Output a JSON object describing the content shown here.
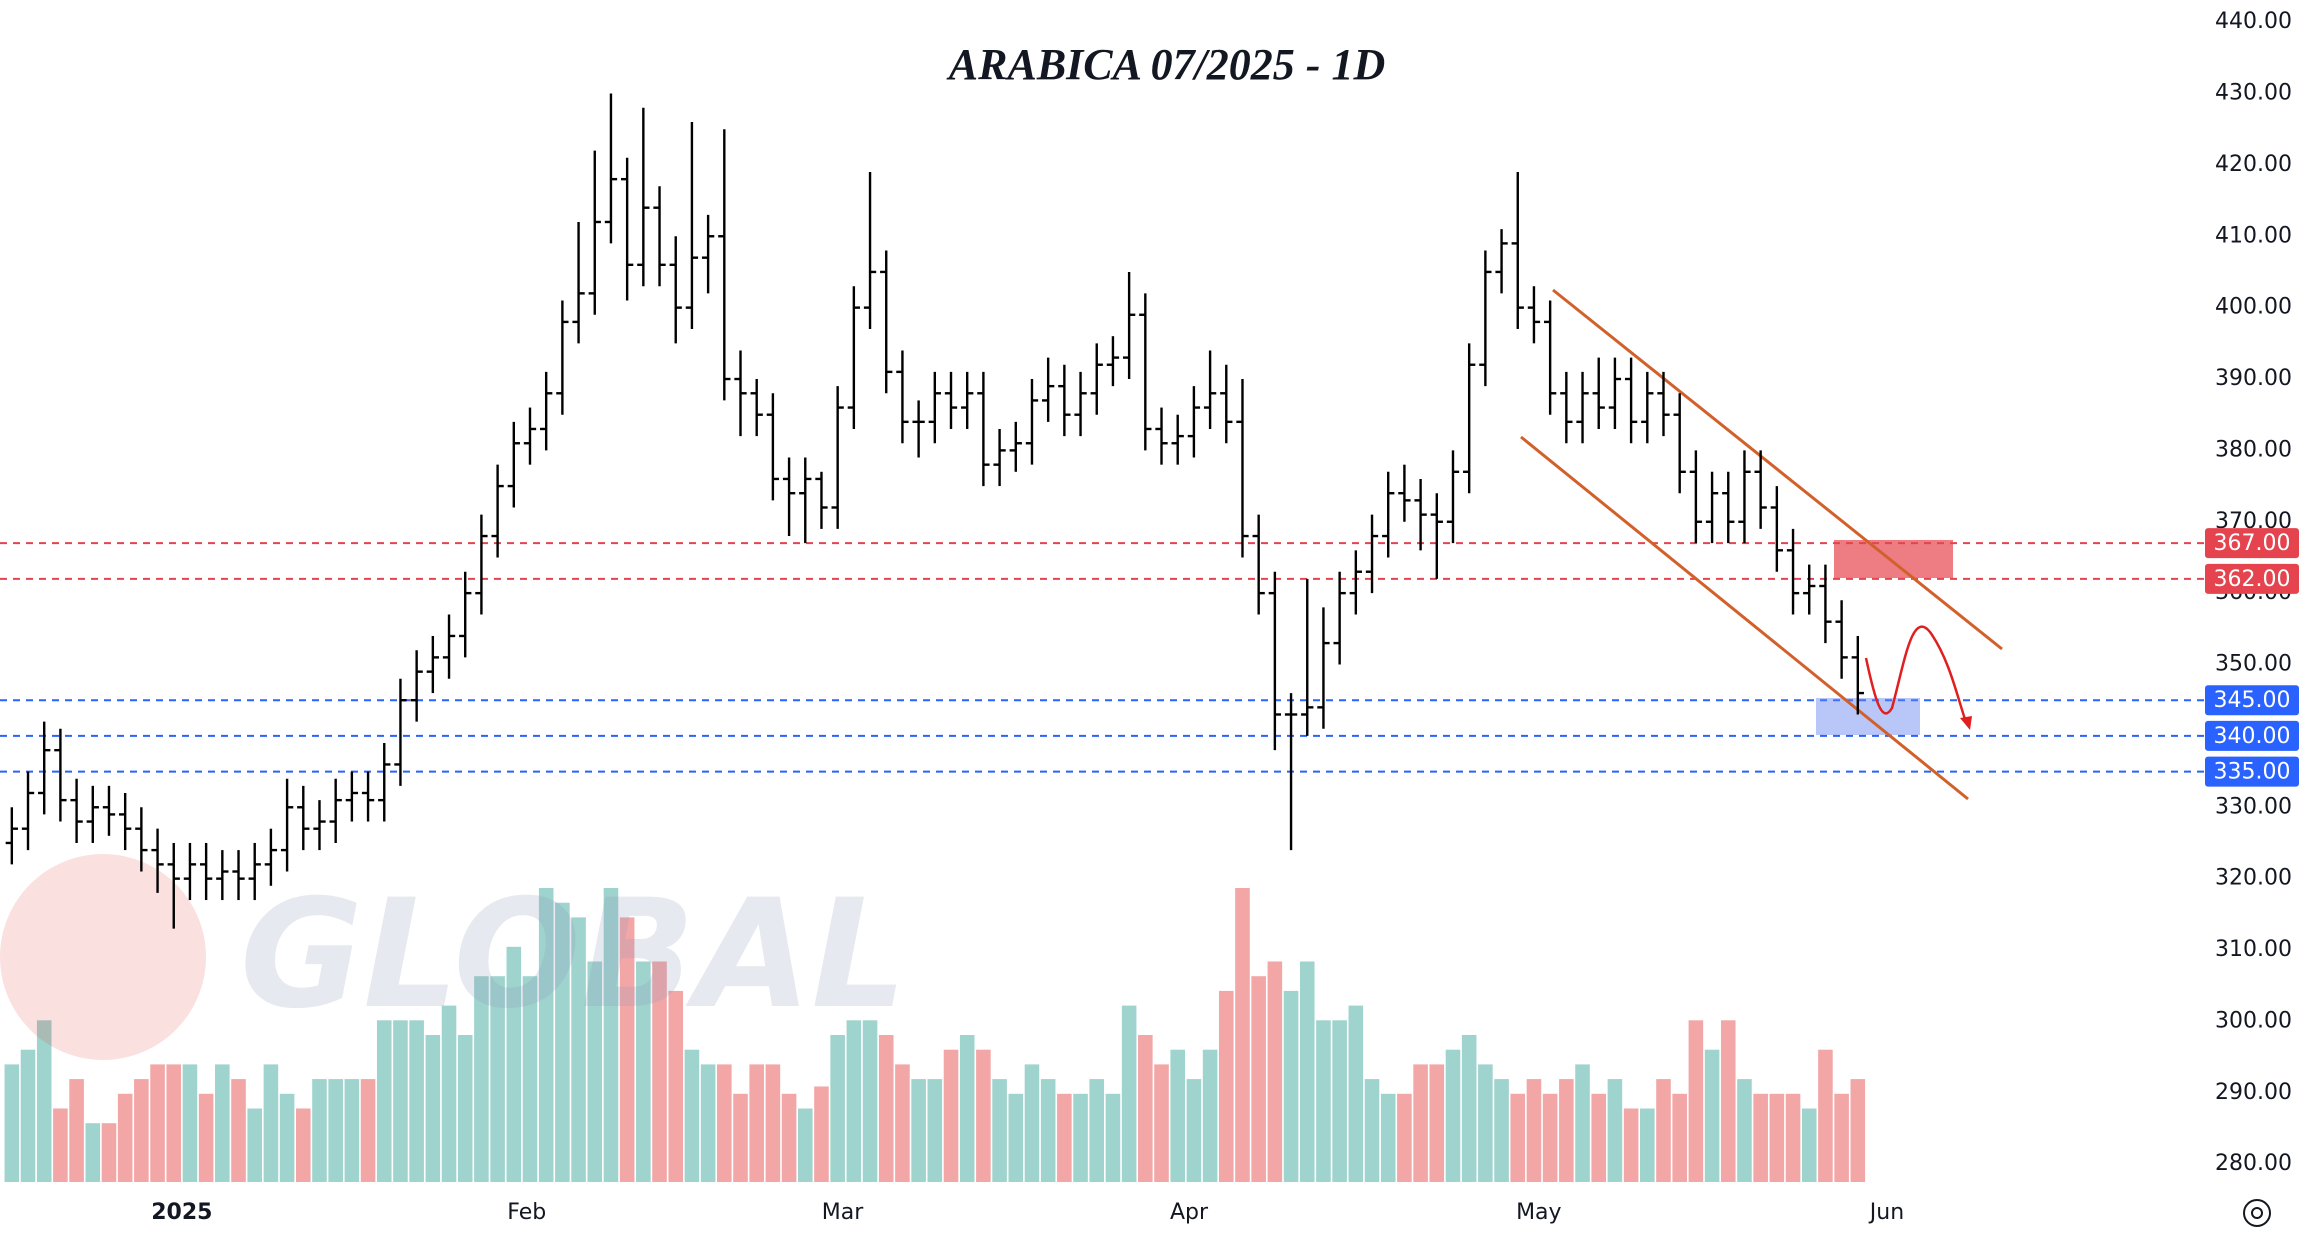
{
  "chart_data": {
    "type": "ohlc",
    "title": "ARABICA 07/2025 - 1D",
    "watermark": "GLOBAL",
    "up_color": "#9fd3cd",
    "down_color": "#f2a6a6",
    "bar_color": "#000000",
    "open": [
      325,
      327,
      332,
      338,
      331,
      328,
      330,
      329,
      327,
      324,
      322,
      320,
      322,
      320,
      321,
      320,
      322,
      324,
      330,
      327,
      328,
      331,
      332,
      331,
      336,
      345,
      349,
      351,
      354,
      360,
      368,
      375,
      381,
      383,
      388,
      398,
      402,
      412,
      418,
      406,
      414,
      406,
      400,
      407,
      410,
      390,
      388,
      385,
      376,
      374,
      376,
      372,
      386,
      400,
      405,
      391,
      384,
      384,
      388,
      386,
      388,
      378,
      380,
      381,
      387,
      389,
      385,
      388,
      392,
      393,
      399,
      383,
      381,
      382,
      386,
      388,
      384,
      368,
      360,
      343,
      343,
      344,
      353,
      360,
      363,
      368,
      374,
      373,
      371,
      370,
      377,
      392,
      405,
      409,
      400,
      398,
      388,
      384,
      388,
      386,
      390,
      384,
      388,
      385,
      377,
      370,
      374,
      370,
      377,
      372,
      366,
      360,
      361,
      356,
      351
    ],
    "high": [
      330,
      335,
      342,
      341,
      334,
      333,
      333,
      332,
      330,
      327,
      325,
      325,
      325,
      324,
      324,
      325,
      327,
      334,
      333,
      331,
      334,
      335,
      335,
      339,
      348,
      352,
      354,
      357,
      363,
      371,
      378,
      384,
      386,
      391,
      401,
      412,
      422,
      430,
      421,
      428,
      417,
      410,
      426,
      413,
      425,
      394,
      390,
      388,
      379,
      379,
      377,
      389,
      403,
      419,
      408,
      394,
      387,
      391,
      391,
      391,
      391,
      383,
      384,
      390,
      393,
      392,
      391,
      395,
      396,
      405,
      402,
      386,
      385,
      389,
      394,
      392,
      390,
      371,
      363,
      346,
      362,
      358,
      363,
      366,
      371,
      377,
      378,
      376,
      374,
      380,
      395,
      408,
      411,
      419,
      403,
      401,
      391,
      391,
      393,
      393,
      393,
      391,
      391,
      388,
      380,
      377,
      377,
      380,
      380,
      375,
      369,
      364,
      364,
      359,
      354
    ],
    "low": [
      322,
      324,
      329,
      328,
      325,
      325,
      326,
      324,
      321,
      318,
      313,
      317,
      317,
      317,
      317,
      317,
      319,
      321,
      324,
      324,
      325,
      328,
      328,
      328,
      333,
      342,
      346,
      348,
      351,
      357,
      365,
      372,
      378,
      380,
      385,
      395,
      399,
      409,
      401,
      403,
      403,
      395,
      397,
      402,
      387,
      382,
      382,
      373,
      368,
      367,
      369,
      369,
      383,
      397,
      388,
      381,
      379,
      381,
      383,
      383,
      375,
      375,
      377,
      378,
      384,
      382,
      382,
      385,
      389,
      390,
      380,
      378,
      378,
      379,
      383,
      381,
      365,
      357,
      338,
      324,
      340,
      341,
      350,
      357,
      360,
      365,
      370,
      366,
      362,
      367,
      374,
      389,
      402,
      397,
      395,
      385,
      381,
      381,
      383,
      383,
      381,
      381,
      382,
      374,
      367,
      367,
      367,
      367,
      369,
      363,
      357,
      357,
      353,
      348,
      343
    ],
    "close": [
      327,
      332,
      338,
      331,
      328,
      330,
      329,
      327,
      324,
      322,
      320,
      322,
      320,
      321,
      320,
      322,
      324,
      330,
      327,
      328,
      331,
      332,
      331,
      336,
      345,
      349,
      351,
      354,
      360,
      368,
      375,
      381,
      383,
      388,
      398,
      402,
      412,
      418,
      406,
      414,
      406,
      400,
      407,
      410,
      390,
      388,
      385,
      376,
      374,
      376,
      372,
      386,
      400,
      405,
      391,
      384,
      384,
      388,
      386,
      388,
      378,
      380,
      381,
      387,
      389,
      385,
      388,
      392,
      393,
      399,
      383,
      381,
      382,
      386,
      388,
      384,
      368,
      360,
      343,
      343,
      344,
      353,
      360,
      363,
      368,
      374,
      373,
      371,
      370,
      377,
      392,
      405,
      409,
      400,
      398,
      388,
      384,
      388,
      386,
      390,
      384,
      388,
      385,
      377,
      370,
      374,
      370,
      377,
      372,
      366,
      360,
      361,
      356,
      351,
      346
    ],
    "volume": [
      80,
      90,
      110,
      50,
      70,
      40,
      40,
      60,
      70,
      80,
      80,
      80,
      60,
      80,
      70,
      50,
      80,
      60,
      50,
      70,
      70,
      70,
      70,
      110,
      110,
      110,
      100,
      120,
      100,
      140,
      140,
      160,
      140,
      200,
      190,
      180,
      150,
      200,
      180,
      150,
      150,
      130,
      90,
      80,
      80,
      60,
      80,
      80,
      60,
      50,
      65,
      100,
      110,
      110,
      100,
      80,
      70,
      70,
      90,
      100,
      90,
      70,
      60,
      80,
      70,
      60,
      60,
      70,
      60,
      120,
      100,
      80,
      90,
      70,
      90,
      130,
      200,
      140,
      150,
      130,
      150,
      110,
      110,
      120,
      70,
      60,
      60,
      80,
      80,
      90,
      100,
      80,
      70,
      60,
      70,
      60,
      70,
      80,
      60,
      70,
      50,
      50,
      70,
      60,
      110,
      90,
      110,
      70,
      60,
      60,
      60,
      50,
      90,
      60,
      70
    ],
    "xlim": [
      -0.73,
      134.7
    ],
    "xticks": [
      {
        "value": 10.5,
        "label": "2025"
      },
      {
        "value": 31.8,
        "label": "Feb"
      },
      {
        "value": 51.3,
        "label": "Mar"
      },
      {
        "value": 72.7,
        "label": "Apr"
      },
      {
        "value": 94.3,
        "label": "May"
      },
      {
        "value": 115.8,
        "label": "Jun"
      }
    ],
    "ylim": [
      277.5,
      443.1
    ],
    "yticks": [
      {
        "value": 280,
        "label": "280.00"
      },
      {
        "value": 290,
        "label": "290.00"
      },
      {
        "value": 300,
        "label": "300.00"
      },
      {
        "value": 310,
        "label": "310.00"
      },
      {
        "value": 320,
        "label": "320.00"
      },
      {
        "value": 330,
        "label": "330.00"
      },
      {
        "value": 340,
        "label": "340.00"
      },
      {
        "value": 350,
        "label": "350.00"
      },
      {
        "value": 360,
        "label": "360.00"
      },
      {
        "value": 370,
        "label": "370.00"
      },
      {
        "value": 380,
        "label": "380.00"
      },
      {
        "value": 390,
        "label": "390.00"
      },
      {
        "value": 400,
        "label": "400.00"
      },
      {
        "value": 410,
        "label": "410.00"
      },
      {
        "value": 420,
        "label": "420.00"
      },
      {
        "value": 430,
        "label": "430.00"
      },
      {
        "value": 440,
        "label": "440.00"
      }
    ],
    "levels": [
      {
        "value": 367,
        "label": "367.00",
        "color": "#e5444f"
      },
      {
        "value": 362,
        "label": "362.00",
        "color": "#e5444f"
      },
      {
        "value": 345,
        "label": "345.00",
        "color": "#2962ff"
      },
      {
        "value": 340,
        "label": "340.00",
        "color": "#2962ff"
      },
      {
        "value": 335,
        "label": "335.00",
        "color": "#2962ff"
      }
    ]
  }
}
